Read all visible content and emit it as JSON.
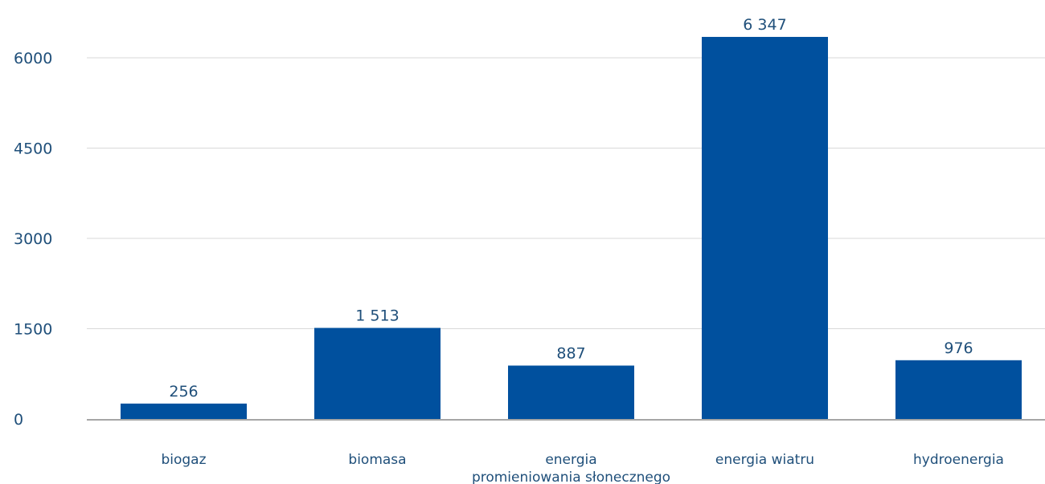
{
  "chart_data": {
    "type": "bar",
    "categories": [
      [
        "biogaz"
      ],
      [
        "biomasa"
      ],
      [
        "energia",
        "promieniowania słonecznego"
      ],
      [
        "energia wiatru"
      ],
      [
        "hydroenergia"
      ]
    ],
    "values": [
      256,
      1513,
      887,
      6347,
      976
    ],
    "value_labels": [
      "256",
      "1 513",
      "887",
      "6 347",
      "976"
    ],
    "y_ticks": [
      0,
      1500,
      3000,
      4500,
      6000
    ],
    "ylim": [
      0,
      6000
    ],
    "grid": true,
    "bar_color": "#00509e",
    "gridline_color": "#d9d9d9",
    "axis_color": "#a6a6a6",
    "text_color": "#1f4f7a",
    "title": "",
    "xlabel": "",
    "ylabel": ""
  }
}
